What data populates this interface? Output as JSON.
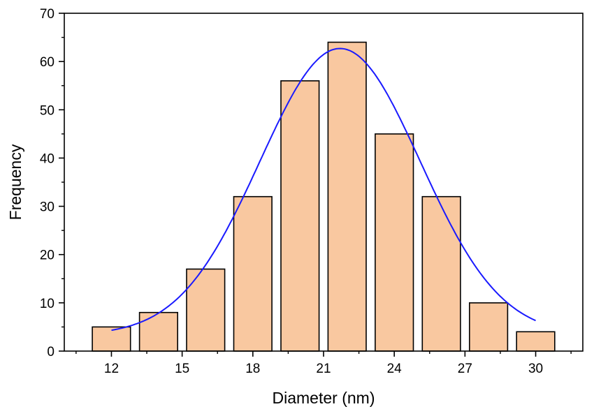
{
  "chart_data": {
    "type": "bar",
    "xlabel": "Diameter (nm)",
    "ylabel": "Frequency",
    "categories": [
      "12",
      "14",
      "16",
      "18",
      "20",
      "22",
      "24",
      "26",
      "28",
      "30"
    ],
    "x": [
      12,
      14,
      16,
      18,
      20,
      22,
      24,
      26,
      28,
      30
    ],
    "values": [
      5,
      8,
      17,
      32,
      56,
      64,
      45,
      32,
      10,
      4
    ],
    "bin_width": 2,
    "xlim": [
      10,
      32
    ],
    "ylim": [
      0,
      70
    ],
    "xticks": [
      12,
      15,
      18,
      21,
      24,
      27,
      30
    ],
    "yticks": [
      0,
      10,
      20,
      30,
      40,
      50,
      60,
      70
    ],
    "fit_curve": {
      "type": "gaussian",
      "x_range": [
        12,
        30
      ],
      "peak_x": 21.7,
      "peak_y": 62.7,
      "sigma": 3.4,
      "baseline": 3.3
    },
    "grid": false,
    "legend": "none",
    "colors": {
      "bar_fill": "#f9c8a0",
      "bar_edge": "#000000",
      "fit_line": "#1a1aff",
      "axis": "#000000"
    }
  }
}
